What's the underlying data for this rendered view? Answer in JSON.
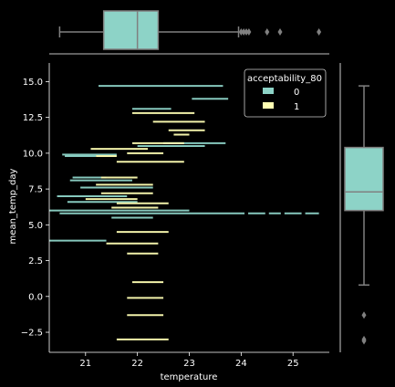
{
  "chart_data": {
    "type": "joint-scatter-with-marginal-boxplots",
    "xlabel": "temperature",
    "ylabel": "mean_temp_day",
    "xlim": [
      20.3,
      25.7
    ],
    "ylim": [
      -3.9,
      16.3
    ],
    "x_ticks": [
      21,
      22,
      23,
      24,
      25
    ],
    "y_ticks": [
      -2.5,
      0.0,
      2.5,
      5.0,
      7.5,
      10.0,
      12.5,
      15.0
    ],
    "x_tick_labels": [
      "21",
      "22",
      "23",
      "24",
      "25"
    ],
    "y_tick_labels": [
      "−2.5",
      "0.0",
      "2.5",
      "5.0",
      "7.5",
      "10.0",
      "12.5",
      "15.0"
    ],
    "legend": {
      "title": "acceptability_80",
      "placement": "top-right",
      "entries": [
        {
          "label": "0",
          "color": "#8dd3c7"
        },
        {
          "label": "1",
          "color": "#ffffb3"
        }
      ]
    },
    "series": [
      {
        "name": "0",
        "color": "#8dd3c7",
        "segments": [
          {
            "y": 14.7,
            "x0": 21.25,
            "x1": 23.65
          },
          {
            "y": 13.8,
            "x0": 23.05,
            "x1": 23.75
          },
          {
            "y": 13.1,
            "x0": 21.9,
            "x1": 22.65
          },
          {
            "y": 10.7,
            "x0": 22.5,
            "x1": 23.7
          },
          {
            "y": 10.5,
            "x0": 22.0,
            "x1": 23.3
          },
          {
            "y": 9.9,
            "x0": 20.55,
            "x1": 21.6
          },
          {
            "y": 9.8,
            "x0": 20.6,
            "x1": 21.2
          },
          {
            "y": 8.3,
            "x0": 20.75,
            "x1": 21.4
          },
          {
            "y": 8.1,
            "x0": 20.7,
            "x1": 21.9
          },
          {
            "y": 7.6,
            "x0": 20.9,
            "x1": 22.3
          },
          {
            "y": 7.0,
            "x0": 20.45,
            "x1": 21.8
          },
          {
            "y": 6.6,
            "x0": 20.65,
            "x1": 22.0
          },
          {
            "y": 6.0,
            "x0": 20.3,
            "x1": 23.0
          },
          {
            "y": 5.8,
            "x0": 20.5,
            "x1": 25.5
          },
          {
            "y": 5.5,
            "x0": 21.5,
            "x1": 22.3
          },
          {
            "y": 3.9,
            "x0": 20.3,
            "x1": 21.4
          }
        ]
      },
      {
        "name": "1",
        "color": "#ffffb3",
        "segments": [
          {
            "y": 12.8,
            "x0": 21.9,
            "x1": 23.1
          },
          {
            "y": 12.2,
            "x0": 22.3,
            "x1": 23.3
          },
          {
            "y": 11.6,
            "x0": 22.6,
            "x1": 23.3
          },
          {
            "y": 11.3,
            "x0": 22.7,
            "x1": 23.0
          },
          {
            "y": 10.7,
            "x0": 21.9,
            "x1": 22.9
          },
          {
            "y": 10.3,
            "x0": 21.1,
            "x1": 22.2
          },
          {
            "y": 10.0,
            "x0": 21.8,
            "x1": 22.5
          },
          {
            "y": 9.8,
            "x0": 21.2,
            "x1": 21.6
          },
          {
            "y": 9.4,
            "x0": 21.6,
            "x1": 22.9
          },
          {
            "y": 8.3,
            "x0": 21.3,
            "x1": 22.0
          },
          {
            "y": 7.8,
            "x0": 21.2,
            "x1": 22.3
          },
          {
            "y": 7.2,
            "x0": 21.3,
            "x1": 22.3
          },
          {
            "y": 6.8,
            "x0": 21.0,
            "x1": 22.0
          },
          {
            "y": 6.5,
            "x0": 21.6,
            "x1": 22.6
          },
          {
            "y": 6.2,
            "x0": 21.5,
            "x1": 22.4
          },
          {
            "y": 4.5,
            "x0": 21.6,
            "x1": 22.6
          },
          {
            "y": 3.7,
            "x0": 21.4,
            "x1": 22.4
          },
          {
            "y": 3.0,
            "x0": 21.8,
            "x1": 22.4
          },
          {
            "y": 1.0,
            "x0": 21.9,
            "x1": 22.5
          },
          {
            "y": -0.1,
            "x0": 21.8,
            "x1": 22.5
          },
          {
            "y": -1.3,
            "x0": 21.8,
            "x1": 22.5
          },
          {
            "y": -3.0,
            "x0": 21.6,
            "x1": 22.6
          }
        ]
      }
    ],
    "x_boxplot": {
      "whisker_low": 20.5,
      "q1": 21.35,
      "median": 22.0,
      "q3": 22.4,
      "whisker_high": 23.95,
      "outliers": [
        24.0,
        24.05,
        24.1,
        24.15,
        24.5,
        24.75,
        25.5
      ],
      "color": "#8dd3c7"
    },
    "y_boxplot": {
      "whisker_low": 0.8,
      "q1": 6.0,
      "median": 7.3,
      "q3": 10.4,
      "whisker_high": 14.7,
      "outliers": [
        -1.3,
        -3.0,
        -3.1
      ],
      "color": "#8dd3c7"
    }
  }
}
